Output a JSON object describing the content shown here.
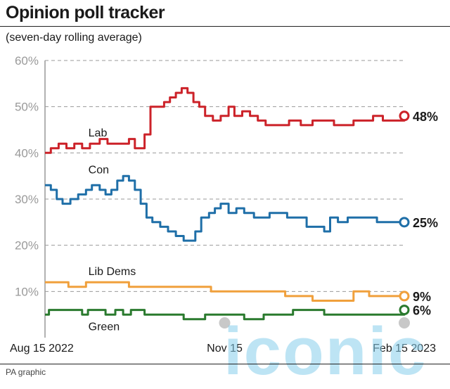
{
  "header": {
    "title": "Opinion poll tracker",
    "subtitle": "(seven-day rolling average)"
  },
  "footer": {
    "source": "PA graphic"
  },
  "watermark": {
    "text": "iconic"
  },
  "colors": {
    "Lab": "#cc2229",
    "Con": "#1f6fa8",
    "Lib Dems": "#f0a03c",
    "Green": "#2a7a2e",
    "grid": "#9a9a9a",
    "axis_text": "#9a9a9a",
    "marker_grey": "#c8c8c8"
  },
  "chart_data": {
    "type": "line",
    "title": "Opinion poll tracker",
    "subtitle": "(seven-day rolling average)",
    "xlabel": "",
    "ylabel": "",
    "x_range": [
      "2022-08-15",
      "2023-02-15"
    ],
    "ylim": [
      0,
      60
    ],
    "y_ticks": [
      10,
      20,
      30,
      40,
      50,
      60
    ],
    "y_tick_labels": [
      "10%",
      "20%",
      "30%",
      "40%",
      "50%",
      "60%"
    ],
    "x_tick_labels": [
      {
        "date": "2022-08-15",
        "label": "Aug 15 2022"
      },
      {
        "date": "2022-11-15",
        "label": "Nov 15"
      },
      {
        "date": "2023-02-15",
        "label": "Feb 15 2023"
      }
    ],
    "grid": true,
    "legend": "inline labels",
    "series": [
      {
        "name": "Lab",
        "end_label": "48%",
        "end_value": 48,
        "points": [
          [
            "2022-08-15",
            40
          ],
          [
            "2022-08-18",
            41
          ],
          [
            "2022-08-22",
            42
          ],
          [
            "2022-08-26",
            41
          ],
          [
            "2022-08-30",
            42
          ],
          [
            "2022-09-03",
            41
          ],
          [
            "2022-09-07",
            42
          ],
          [
            "2022-09-12",
            43
          ],
          [
            "2022-09-16",
            42
          ],
          [
            "2022-09-20",
            42
          ],
          [
            "2022-09-24",
            42
          ],
          [
            "2022-09-27",
            43
          ],
          [
            "2022-09-30",
            41
          ],
          [
            "2022-10-02",
            41
          ],
          [
            "2022-10-05",
            44
          ],
          [
            "2022-10-08",
            50
          ],
          [
            "2022-10-12",
            50
          ],
          [
            "2022-10-15",
            51
          ],
          [
            "2022-10-18",
            52
          ],
          [
            "2022-10-21",
            53
          ],
          [
            "2022-10-24",
            54
          ],
          [
            "2022-10-27",
            53
          ],
          [
            "2022-10-30",
            51
          ],
          [
            "2022-11-02",
            50
          ],
          [
            "2022-11-05",
            48
          ],
          [
            "2022-11-09",
            47
          ],
          [
            "2022-11-13",
            48
          ],
          [
            "2022-11-17",
            50
          ],
          [
            "2022-11-20",
            48
          ],
          [
            "2022-11-24",
            49
          ],
          [
            "2022-11-28",
            48
          ],
          [
            "2022-12-02",
            47
          ],
          [
            "2022-12-06",
            46
          ],
          [
            "2022-12-12",
            46
          ],
          [
            "2022-12-18",
            47
          ],
          [
            "2022-12-24",
            46
          ],
          [
            "2022-12-30",
            47
          ],
          [
            "2023-01-05",
            47
          ],
          [
            "2023-01-10",
            46
          ],
          [
            "2023-01-15",
            46
          ],
          [
            "2023-01-20",
            47
          ],
          [
            "2023-01-25",
            47
          ],
          [
            "2023-01-30",
            48
          ],
          [
            "2023-02-04",
            47
          ],
          [
            "2023-02-09",
            47
          ],
          [
            "2023-02-15",
            48
          ]
        ]
      },
      {
        "name": "Con",
        "end_label": "25%",
        "end_value": 25,
        "points": [
          [
            "2022-08-15",
            33
          ],
          [
            "2022-08-18",
            32
          ],
          [
            "2022-08-21",
            30
          ],
          [
            "2022-08-24",
            29
          ],
          [
            "2022-08-28",
            30
          ],
          [
            "2022-09-01",
            31
          ],
          [
            "2022-09-05",
            32
          ],
          [
            "2022-09-08",
            33
          ],
          [
            "2022-09-12",
            32
          ],
          [
            "2022-09-15",
            31
          ],
          [
            "2022-09-18",
            32
          ],
          [
            "2022-09-21",
            34
          ],
          [
            "2022-09-24",
            35
          ],
          [
            "2022-09-27",
            34
          ],
          [
            "2022-09-30",
            32
          ],
          [
            "2022-10-03",
            29
          ],
          [
            "2022-10-06",
            26
          ],
          [
            "2022-10-09",
            25
          ],
          [
            "2022-10-13",
            24
          ],
          [
            "2022-10-17",
            23
          ],
          [
            "2022-10-21",
            22
          ],
          [
            "2022-10-25",
            21
          ],
          [
            "2022-10-28",
            21
          ],
          [
            "2022-10-31",
            23
          ],
          [
            "2022-11-03",
            26
          ],
          [
            "2022-11-07",
            27
          ],
          [
            "2022-11-10",
            28
          ],
          [
            "2022-11-13",
            29
          ],
          [
            "2022-11-17",
            27
          ],
          [
            "2022-11-21",
            28
          ],
          [
            "2022-11-25",
            27
          ],
          [
            "2022-11-30",
            26
          ],
          [
            "2022-12-04",
            26
          ],
          [
            "2022-12-08",
            27
          ],
          [
            "2022-12-12",
            27
          ],
          [
            "2022-12-17",
            26
          ],
          [
            "2022-12-22",
            26
          ],
          [
            "2022-12-27",
            24
          ],
          [
            "2023-01-01",
            24
          ],
          [
            "2023-01-05",
            23
          ],
          [
            "2023-01-08",
            26
          ],
          [
            "2023-01-12",
            25
          ],
          [
            "2023-01-17",
            26
          ],
          [
            "2023-01-22",
            26
          ],
          [
            "2023-01-27",
            26
          ],
          [
            "2023-02-01",
            25
          ],
          [
            "2023-02-06",
            25
          ],
          [
            "2023-02-10",
            25
          ],
          [
            "2023-02-15",
            25
          ]
        ]
      },
      {
        "name": "Lib Dems",
        "end_label": "9%",
        "end_value": 9,
        "points": [
          [
            "2022-08-15",
            12
          ],
          [
            "2022-08-22",
            12
          ],
          [
            "2022-08-27",
            11
          ],
          [
            "2022-09-05",
            12
          ],
          [
            "2022-09-15",
            12
          ],
          [
            "2022-09-27",
            11
          ],
          [
            "2022-10-15",
            11
          ],
          [
            "2022-10-29",
            11
          ],
          [
            "2022-11-08",
            10
          ],
          [
            "2022-11-20",
            10
          ],
          [
            "2022-11-30",
            10
          ],
          [
            "2022-12-08",
            10
          ],
          [
            "2022-12-16",
            9
          ],
          [
            "2022-12-24",
            9
          ],
          [
            "2022-12-30",
            8
          ],
          [
            "2023-01-10",
            8
          ],
          [
            "2023-01-20",
            10
          ],
          [
            "2023-01-28",
            9
          ],
          [
            "2023-02-15",
            9
          ]
        ]
      },
      {
        "name": "Green",
        "end_label": "6%",
        "end_value": 6,
        "points": [
          [
            "2022-08-15",
            5
          ],
          [
            "2022-08-17",
            6
          ],
          [
            "2022-08-30",
            6
          ],
          [
            "2022-09-03",
            5
          ],
          [
            "2022-09-06",
            6
          ],
          [
            "2022-09-10",
            6
          ],
          [
            "2022-09-15",
            5
          ],
          [
            "2022-09-20",
            6
          ],
          [
            "2022-09-24",
            5
          ],
          [
            "2022-09-28",
            6
          ],
          [
            "2022-10-05",
            5
          ],
          [
            "2022-10-15",
            5
          ],
          [
            "2022-10-25",
            4
          ],
          [
            "2022-11-05",
            5
          ],
          [
            "2022-11-15",
            5
          ],
          [
            "2022-11-25",
            4
          ],
          [
            "2022-12-05",
            5
          ],
          [
            "2022-12-20",
            6
          ],
          [
            "2023-01-05",
            5
          ],
          [
            "2023-01-20",
            5
          ],
          [
            "2023-02-05",
            5
          ],
          [
            "2023-02-15",
            6
          ]
        ]
      }
    ],
    "series_labels": [
      {
        "series": "Lab",
        "text": "Lab",
        "date": "2022-08-30",
        "value": 44.5
      },
      {
        "series": "Con",
        "text": "Con",
        "date": "2022-08-30",
        "value": 36.5
      },
      {
        "series": "Lib Dems",
        "text": "Lib Dems",
        "date": "2022-08-30",
        "value": 14.5
      },
      {
        "series": "Green",
        "text": "Green",
        "date": "2022-08-30",
        "value": 2.5
      }
    ]
  }
}
